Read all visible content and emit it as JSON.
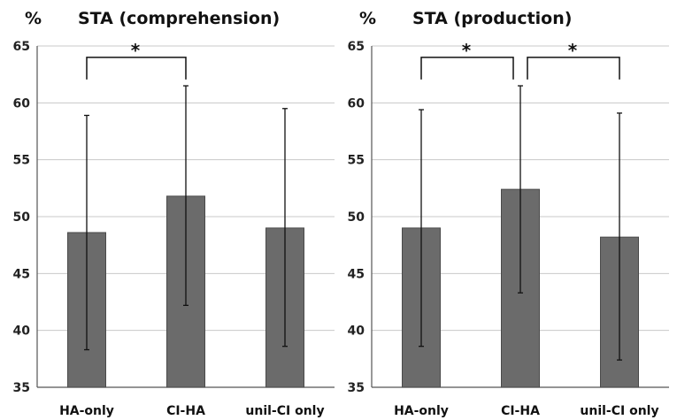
{
  "chart_data": [
    {
      "type": "bar",
      "title": "STA (comprehension)",
      "ylabel": "%",
      "ylim": [
        35,
        65
      ],
      "yticks": [
        35,
        40,
        45,
        50,
        55,
        60,
        65
      ],
      "grid": true,
      "categories": [
        "HA-only",
        "CI-HA",
        "unil-CI only"
      ],
      "values": [
        48.6,
        51.8,
        49.0
      ],
      "error_low": [
        38.3,
        42.2,
        38.6
      ],
      "error_high": [
        58.9,
        61.5,
        59.5
      ],
      "bar_color": "#6b6b6b",
      "significance": [
        {
          "from": 0,
          "to": 1,
          "label": "*"
        }
      ]
    },
    {
      "type": "bar",
      "title": "STA (production)",
      "ylabel": "%",
      "ylim": [
        35,
        65
      ],
      "yticks": [
        35,
        40,
        45,
        50,
        55,
        60,
        65
      ],
      "grid": true,
      "categories": [
        "HA-only",
        "CI-HA",
        "unil-CI only"
      ],
      "values": [
        49.0,
        52.4,
        48.2
      ],
      "error_low": [
        38.6,
        43.3,
        37.4
      ],
      "error_high": [
        59.4,
        61.5,
        59.1
      ],
      "bar_color": "#6b6b6b",
      "significance": [
        {
          "from": 0,
          "to": 1,
          "label": "*"
        },
        {
          "from": 1,
          "to": 2,
          "label": "*"
        }
      ]
    }
  ]
}
